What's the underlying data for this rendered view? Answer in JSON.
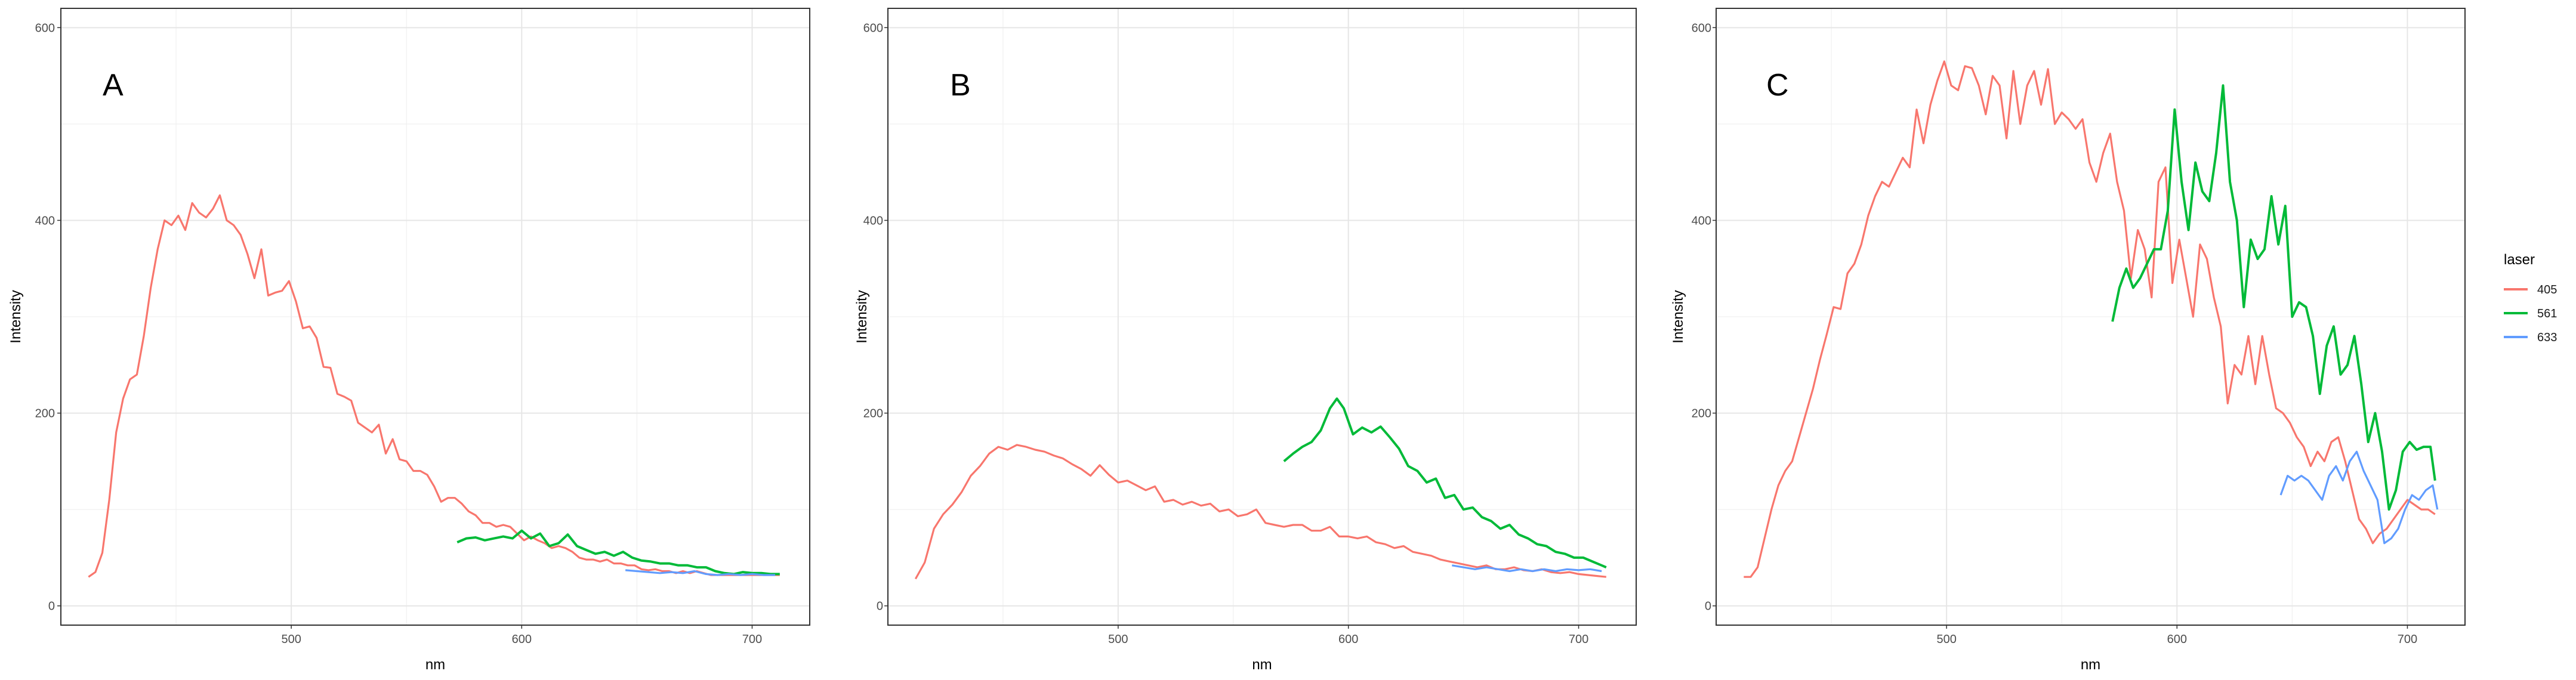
{
  "chart_data": [
    {
      "type": "line",
      "panel_label": "A",
      "xlabel": "nm",
      "ylabel": "Intensity",
      "xlim": [
        400,
        725
      ],
      "ylim": [
        -20,
        620
      ],
      "xticks": [
        "500",
        "600",
        "700"
      ],
      "yticks": [
        "0",
        "200",
        "400",
        "600"
      ],
      "grid": true,
      "series": [
        {
          "name": "405",
          "x": [
            412,
            415,
            418,
            421,
            424,
            427,
            430,
            433,
            436,
            439,
            442,
            445,
            448,
            451,
            454,
            457,
            460,
            463,
            466,
            469,
            472,
            475,
            478,
            481,
            484,
            487,
            490,
            493,
            496,
            499,
            502,
            505,
            508,
            511,
            514,
            517,
            520,
            523,
            526,
            529,
            532,
            535,
            538,
            541,
            544,
            547,
            550,
            553,
            556,
            559,
            562,
            565,
            568,
            571,
            574,
            577,
            580,
            583,
            586,
            589,
            592,
            595,
            598,
            601,
            604,
            607,
            610,
            613,
            616,
            619,
            622,
            625,
            628,
            631,
            634,
            637,
            640,
            643,
            646,
            649,
            652,
            655,
            658,
            661,
            664,
            667,
            670,
            673,
            676,
            679,
            682,
            685,
            688,
            691,
            694,
            697,
            700,
            703,
            706,
            709,
            712
          ],
          "y": [
            30,
            35,
            55,
            110,
            180,
            215,
            235,
            240,
            280,
            330,
            370,
            400,
            395,
            405,
            390,
            418,
            408,
            403,
            412,
            426,
            400,
            395,
            385,
            365,
            340,
            370,
            322,
            325,
            327,
            337,
            316,
            288,
            290,
            278,
            248,
            247,
            220,
            217,
            213,
            190,
            185,
            180,
            188,
            158,
            173,
            152,
            150,
            140,
            140,
            136,
            124,
            108,
            112,
            112,
            106,
            98,
            94,
            86,
            86,
            82,
            84,
            82,
            75,
            68,
            72,
            68,
            65,
            60,
            62,
            60,
            56,
            50,
            48,
            48,
            46,
            48,
            44,
            44,
            42,
            42,
            38,
            37,
            38,
            36,
            36,
            34,
            36,
            34,
            36,
            34,
            32,
            32,
            32,
            32,
            32,
            32,
            32,
            32,
            32,
            32,
            32
          ],
          "color": "#F8766D"
        },
        {
          "name": "561",
          "x": [
            572,
            576,
            580,
            584,
            588,
            592,
            596,
            600,
            604,
            608,
            612,
            616,
            620,
            624,
            628,
            632,
            636,
            640,
            644,
            648,
            652,
            656,
            660,
            664,
            668,
            672,
            676,
            680,
            684,
            688,
            692,
            696,
            700,
            704,
            708,
            712
          ],
          "y": [
            66,
            70,
            71,
            68,
            70,
            72,
            70,
            78,
            70,
            75,
            62,
            65,
            74,
            62,
            58,
            54,
            56,
            52,
            56,
            50,
            47,
            46,
            44,
            44,
            42,
            42,
            40,
            40,
            36,
            34,
            33,
            35,
            34,
            34,
            33,
            33
          ],
          "color": "#00BA38"
        },
        {
          "name": "633",
          "x": [
            645,
            650,
            655,
            660,
            665,
            670,
            675,
            680,
            685,
            690,
            695,
            700,
            705,
            710
          ],
          "y": [
            37,
            36,
            35,
            34,
            35,
            34,
            36,
            33,
            32,
            33,
            32,
            33,
            32,
            32
          ],
          "color": "#619CFF"
        }
      ]
    },
    {
      "type": "line",
      "panel_label": "B",
      "xlabel": "nm",
      "ylabel": "Intensity",
      "xlim": [
        400,
        725
      ],
      "ylim": [
        -20,
        620
      ],
      "xticks": [
        "500",
        "600",
        "700"
      ],
      "yticks": [
        "0",
        "200",
        "400",
        "600"
      ],
      "grid": true,
      "series": [
        {
          "name": "405",
          "x": [
            412,
            416,
            420,
            424,
            428,
            432,
            436,
            440,
            444,
            448,
            452,
            456,
            460,
            464,
            468,
            472,
            476,
            480,
            484,
            488,
            492,
            496,
            500,
            504,
            508,
            512,
            516,
            520,
            524,
            528,
            532,
            536,
            540,
            544,
            548,
            552,
            556,
            560,
            564,
            568,
            572,
            576,
            580,
            584,
            588,
            592,
            596,
            600,
            604,
            608,
            612,
            616,
            620,
            624,
            628,
            632,
            636,
            640,
            644,
            648,
            652,
            656,
            660,
            664,
            668,
            672,
            676,
            680,
            684,
            688,
            692,
            696,
            700,
            704,
            708,
            712
          ],
          "y": [
            28,
            45,
            80,
            95,
            105,
            118,
            135,
            145,
            158,
            165,
            162,
            167,
            165,
            162,
            160,
            156,
            153,
            147,
            142,
            135,
            146,
            136,
            128,
            130,
            125,
            120,
            124,
            108,
            110,
            105,
            108,
            104,
            106,
            98,
            100,
            93,
            95,
            100,
            86,
            84,
            82,
            84,
            84,
            78,
            78,
            82,
            72,
            72,
            70,
            72,
            66,
            64,
            60,
            62,
            56,
            54,
            52,
            48,
            46,
            44,
            42,
            40,
            42,
            38,
            38,
            40,
            37,
            36,
            38,
            35,
            34,
            35,
            33,
            32,
            31,
            30
          ],
          "color": "#F8766D"
        },
        {
          "name": "561",
          "x": [
            572,
            576,
            580,
            584,
            588,
            592,
            595,
            598,
            602,
            606,
            610,
            614,
            618,
            622,
            626,
            630,
            634,
            638,
            642,
            646,
            650,
            654,
            658,
            662,
            666,
            670,
            674,
            678,
            682,
            686,
            690,
            694,
            698,
            702,
            706,
            710,
            712
          ],
          "y": [
            150,
            158,
            165,
            170,
            182,
            205,
            215,
            205,
            178,
            185,
            180,
            186,
            175,
            163,
            145,
            140,
            128,
            132,
            112,
            115,
            100,
            102,
            92,
            88,
            80,
            84,
            74,
            70,
            64,
            62,
            56,
            54,
            50,
            50,
            46,
            42,
            40
          ],
          "color": "#00BA38"
        },
        {
          "name": "633",
          "x": [
            645,
            650,
            655,
            660,
            665,
            670,
            675,
            680,
            685,
            690,
            695,
            700,
            705,
            710
          ],
          "y": [
            42,
            40,
            38,
            40,
            38,
            36,
            38,
            36,
            38,
            36,
            38,
            37,
            38,
            36
          ],
          "color": "#619CFF"
        }
      ]
    },
    {
      "type": "line",
      "panel_label": "C",
      "xlabel": "nm",
      "ylabel": "Intensity",
      "xlim": [
        400,
        725
      ],
      "ylim": [
        -20,
        620
      ],
      "xticks": [
        "500",
        "600",
        "700"
      ],
      "yticks": [
        "0",
        "200",
        "400",
        "600"
      ],
      "grid": true,
      "legend": {
        "title": "laser",
        "position": "right",
        "entries": [
          "405",
          "561",
          "633"
        ]
      },
      "series": [
        {
          "name": "405",
          "x": [
            412,
            415,
            418,
            421,
            424,
            427,
            430,
            433,
            436,
            439,
            442,
            445,
            448,
            451,
            454,
            457,
            460,
            463,
            466,
            469,
            472,
            475,
            478,
            481,
            484,
            487,
            490,
            493,
            496,
            499,
            502,
            505,
            508,
            511,
            514,
            517,
            520,
            523,
            526,
            529,
            532,
            535,
            538,
            541,
            544,
            547,
            550,
            553,
            556,
            559,
            562,
            565,
            568,
            571,
            574,
            577,
            580,
            583,
            586,
            589,
            592,
            595,
            598,
            601,
            604,
            607,
            610,
            613,
            616,
            619,
            622,
            625,
            628,
            631,
            634,
            637,
            640,
            643,
            646,
            649,
            652,
            655,
            658,
            661,
            664,
            667,
            670,
            673,
            676,
            679,
            682,
            685,
            688,
            691,
            694,
            697,
            700,
            703,
            706,
            709,
            712
          ],
          "y": [
            30,
            30,
            40,
            70,
            100,
            125,
            140,
            150,
            175,
            200,
            225,
            255,
            282,
            310,
            308,
            345,
            355,
            375,
            405,
            425,
            440,
            435,
            450,
            465,
            455,
            515,
            480,
            520,
            545,
            565,
            540,
            535,
            560,
            558,
            540,
            510,
            550,
            540,
            485,
            555,
            500,
            540,
            555,
            520,
            557,
            500,
            512,
            505,
            495,
            505,
            460,
            440,
            470,
            490,
            440,
            410,
            340,
            390,
            370,
            320,
            440,
            455,
            335,
            380,
            340,
            300,
            375,
            360,
            320,
            290,
            210,
            250,
            240,
            280,
            230,
            280,
            240,
            205,
            200,
            190,
            175,
            165,
            145,
            160,
            150,
            170,
            175,
            150,
            120,
            90,
            80,
            65,
            75,
            80,
            90,
            100,
            110,
            105,
            100,
            100,
            95
          ],
          "color": "#F8766D"
        },
        {
          "name": "561",
          "x": [
            572,
            575,
            578,
            581,
            584,
            587,
            590,
            593,
            596,
            599,
            602,
            605,
            608,
            611,
            614,
            617,
            620,
            623,
            626,
            629,
            632,
            635,
            638,
            641,
            644,
            647,
            650,
            653,
            656,
            659,
            662,
            665,
            668,
            671,
            674,
            677,
            680,
            683,
            686,
            689,
            692,
            695,
            698,
            701,
            704,
            707,
            710,
            712
          ],
          "y": [
            295,
            330,
            350,
            330,
            340,
            355,
            370,
            370,
            410,
            515,
            440,
            390,
            460,
            430,
            420,
            470,
            540,
            440,
            400,
            310,
            380,
            360,
            370,
            425,
            375,
            415,
            300,
            315,
            310,
            280,
            220,
            270,
            290,
            240,
            250,
            280,
            230,
            170,
            200,
            160,
            100,
            120,
            160,
            170,
            162,
            165,
            165,
            130
          ],
          "color": "#00BA38"
        },
        {
          "name": "633",
          "x": [
            645,
            648,
            651,
            654,
            657,
            660,
            663,
            666,
            669,
            672,
            675,
            678,
            681,
            684,
            687,
            690,
            693,
            696,
            699,
            702,
            705,
            708,
            711,
            713
          ],
          "y": [
            115,
            135,
            130,
            135,
            130,
            120,
            110,
            135,
            145,
            130,
            150,
            160,
            140,
            125,
            110,
            65,
            70,
            80,
            100,
            115,
            110,
            120,
            125,
            100
          ],
          "color": "#619CFF"
        }
      ]
    }
  ]
}
